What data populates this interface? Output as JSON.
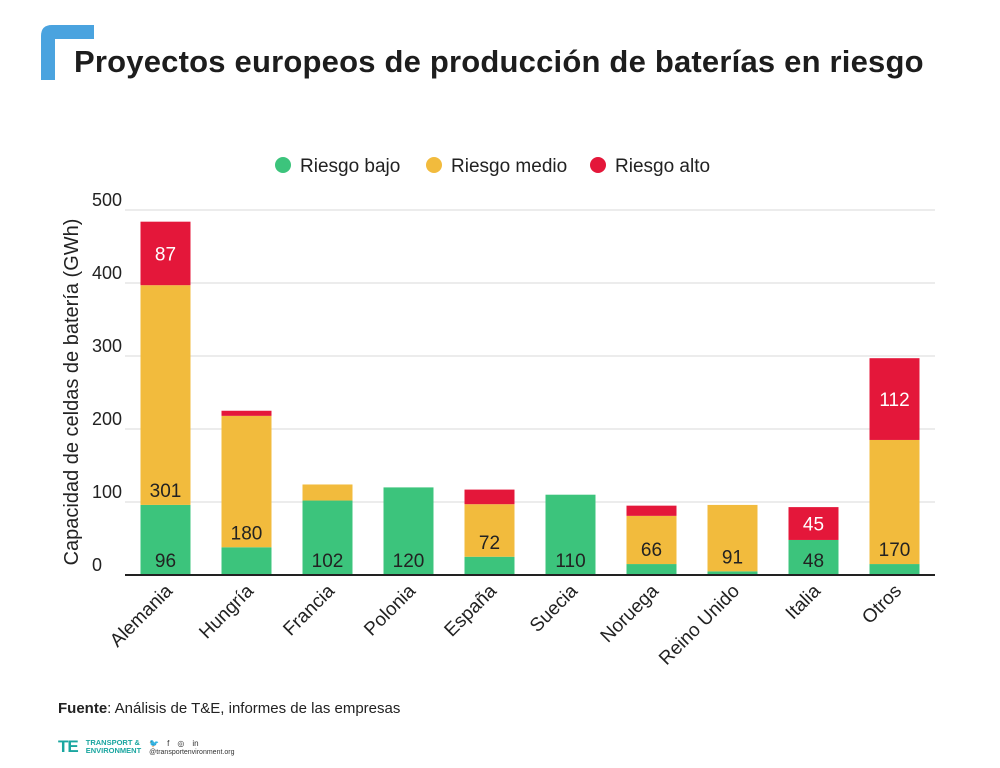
{
  "page": {
    "title": "Proyectos europeos de producción de baterías en riesgo"
  },
  "source": {
    "label": "Fuente",
    "text": ": Análisis de T&E, informes de las empresas"
  },
  "footer": {
    "logo_mark": "TE",
    "logo_line1": "TRANSPORT &",
    "logo_line2": "ENVIRONMENT",
    "website": "@transportenvironment.org"
  },
  "colors": {
    "bajo": "#3cc47c",
    "medio": "#f2bb3d",
    "alto": "#e4173a",
    "brand": "#4aa3df",
    "grid": "#d9d9d9",
    "axis": "#222222"
  },
  "chart_data": {
    "type": "bar",
    "stacked": true,
    "title": "Proyectos europeos de producción de baterías en riesgo",
    "xlabel": "",
    "ylabel": "Capacidad de celdas de batería (GWh)",
    "ylim": [
      0,
      500
    ],
    "yticks": [
      0,
      100,
      200,
      300,
      400,
      500
    ],
    "legend_position": "top-center",
    "categories": [
      "Alemania",
      "Hungría",
      "Francia",
      "Polonia",
      "España",
      "Suecia",
      "Noruega",
      "Reino Unido",
      "Italia",
      "Otros"
    ],
    "series": [
      {
        "name": "Riesgo bajo",
        "color_key": "bajo",
        "values": [
          96,
          38,
          102,
          120,
          25,
          110,
          15,
          5,
          48,
          15
        ]
      },
      {
        "name": "Riesgo medio",
        "color_key": "medio",
        "values": [
          301,
          180,
          22,
          0,
          72,
          0,
          66,
          91,
          0,
          170
        ]
      },
      {
        "name": "Riesgo alto",
        "color_key": "alto",
        "values": [
          87,
          7,
          0,
          0,
          20,
          0,
          14,
          0,
          45,
          112
        ]
      }
    ],
    "data_labels": [
      {
        "category": "Alemania",
        "series": "Riesgo bajo",
        "text": "96"
      },
      {
        "category": "Alemania",
        "series": "Riesgo medio",
        "text": "301"
      },
      {
        "category": "Alemania",
        "series": "Riesgo alto",
        "text": "87"
      },
      {
        "category": "Hungría",
        "series": "Riesgo medio",
        "text": "180"
      },
      {
        "category": "Francia",
        "series": "Riesgo bajo",
        "text": "102"
      },
      {
        "category": "Polonia",
        "series": "Riesgo bajo",
        "text": "120"
      },
      {
        "category": "España",
        "series": "Riesgo medio",
        "text": "72"
      },
      {
        "category": "Suecia",
        "series": "Riesgo bajo",
        "text": "110"
      },
      {
        "category": "Noruega",
        "series": "Riesgo medio",
        "text": "66"
      },
      {
        "category": "Reino Unido",
        "series": "Riesgo medio",
        "text": "91"
      },
      {
        "category": "Italia",
        "series": "Riesgo bajo",
        "text": "48"
      },
      {
        "category": "Italia",
        "series": "Riesgo alto",
        "text": "45"
      },
      {
        "category": "Otros",
        "series": "Riesgo medio",
        "text": "170"
      },
      {
        "category": "Otros",
        "series": "Riesgo alto",
        "text": "112"
      }
    ]
  }
}
